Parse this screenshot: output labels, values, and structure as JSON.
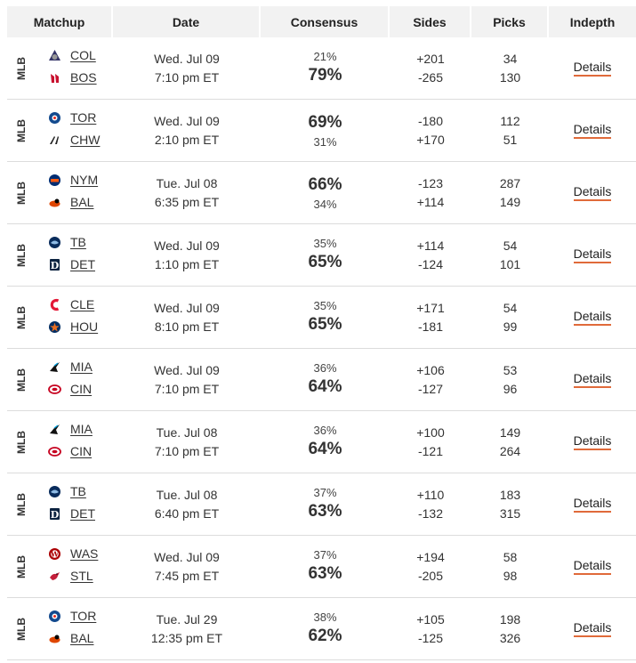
{
  "header": {
    "matchup": "Matchup",
    "date": "Date",
    "consensus": "Consensus",
    "sides": "Sides",
    "picks": "Picks",
    "indepth": "Indepth"
  },
  "brand_colors": {
    "details_underline": "#e06a3a",
    "header_bg": "#f2f2f2"
  },
  "rows": [
    {
      "league": "MLB",
      "team1": {
        "abbr": "COL",
        "icon": "rockies-logo-icon"
      },
      "team2": {
        "abbr": "BOS",
        "icon": "red-sox-logo-icon"
      },
      "day": "Wed. Jul 09",
      "time": "7:10 pm ET",
      "pct1": "21%",
      "pct2": "79%",
      "fav": 2,
      "side1": "+201",
      "side2": "-265",
      "picks1": "34",
      "picks2": "130",
      "details": "Details"
    },
    {
      "league": "MLB",
      "team1": {
        "abbr": "TOR",
        "icon": "blue-jays-logo-icon"
      },
      "team2": {
        "abbr": "CHW",
        "icon": "white-sox-logo-icon"
      },
      "day": "Wed. Jul 09",
      "time": "2:10 pm ET",
      "pct1": "69%",
      "pct2": "31%",
      "fav": 1,
      "side1": "-180",
      "side2": "+170",
      "picks1": "112",
      "picks2": "51",
      "details": "Details"
    },
    {
      "league": "MLB",
      "team1": {
        "abbr": "NYM",
        "icon": "mets-logo-icon"
      },
      "team2": {
        "abbr": "BAL",
        "icon": "orioles-logo-icon"
      },
      "day": "Tue. Jul 08",
      "time": "6:35 pm ET",
      "pct1": "66%",
      "pct2": "34%",
      "fav": 1,
      "side1": "-123",
      "side2": "+114",
      "picks1": "287",
      "picks2": "149",
      "details": "Details"
    },
    {
      "league": "MLB",
      "team1": {
        "abbr": "TB",
        "icon": "rays-logo-icon"
      },
      "team2": {
        "abbr": "DET",
        "icon": "tigers-logo-icon"
      },
      "day": "Wed. Jul 09",
      "time": "1:10 pm ET",
      "pct1": "35%",
      "pct2": "65%",
      "fav": 2,
      "side1": "+114",
      "side2": "-124",
      "picks1": "54",
      "picks2": "101",
      "details": "Details"
    },
    {
      "league": "MLB",
      "team1": {
        "abbr": "CLE",
        "icon": "guardians-logo-icon"
      },
      "team2": {
        "abbr": "HOU",
        "icon": "astros-logo-icon"
      },
      "day": "Wed. Jul 09",
      "time": "8:10 pm ET",
      "pct1": "35%",
      "pct2": "65%",
      "fav": 2,
      "side1": "+171",
      "side2": "-181",
      "picks1": "54",
      "picks2": "99",
      "details": "Details"
    },
    {
      "league": "MLB",
      "team1": {
        "abbr": "MIA",
        "icon": "marlins-logo-icon"
      },
      "team2": {
        "abbr": "CIN",
        "icon": "reds-logo-icon"
      },
      "day": "Wed. Jul 09",
      "time": "7:10 pm ET",
      "pct1": "36%",
      "pct2": "64%",
      "fav": 2,
      "side1": "+106",
      "side2": "-127",
      "picks1": "53",
      "picks2": "96",
      "details": "Details"
    },
    {
      "league": "MLB",
      "team1": {
        "abbr": "MIA",
        "icon": "marlins-logo-icon"
      },
      "team2": {
        "abbr": "CIN",
        "icon": "reds-logo-icon"
      },
      "day": "Tue. Jul 08",
      "time": "7:10 pm ET",
      "pct1": "36%",
      "pct2": "64%",
      "fav": 2,
      "side1": "+100",
      "side2": "-121",
      "picks1": "149",
      "picks2": "264",
      "details": "Details"
    },
    {
      "league": "MLB",
      "team1": {
        "abbr": "TB",
        "icon": "rays-logo-icon"
      },
      "team2": {
        "abbr": "DET",
        "icon": "tigers-logo-icon"
      },
      "day": "Tue. Jul 08",
      "time": "6:40 pm ET",
      "pct1": "37%",
      "pct2": "63%",
      "fav": 2,
      "side1": "+110",
      "side2": "-132",
      "picks1": "183",
      "picks2": "315",
      "details": "Details"
    },
    {
      "league": "MLB",
      "team1": {
        "abbr": "WAS",
        "icon": "nationals-logo-icon"
      },
      "team2": {
        "abbr": "STL",
        "icon": "cardinals-logo-icon"
      },
      "day": "Wed. Jul 09",
      "time": "7:45 pm ET",
      "pct1": "37%",
      "pct2": "63%",
      "fav": 2,
      "side1": "+194",
      "side2": "-205",
      "picks1": "58",
      "picks2": "98",
      "details": "Details"
    },
    {
      "league": "MLB",
      "team1": {
        "abbr": "TOR",
        "icon": "blue-jays-logo-icon"
      },
      "team2": {
        "abbr": "BAL",
        "icon": "orioles-logo-icon"
      },
      "day": "Tue. Jul 29",
      "time": "12:35 pm ET",
      "pct1": "38%",
      "pct2": "62%",
      "fav": 2,
      "side1": "+105",
      "side2": "-125",
      "picks1": "198",
      "picks2": "326",
      "details": "Details"
    }
  ]
}
